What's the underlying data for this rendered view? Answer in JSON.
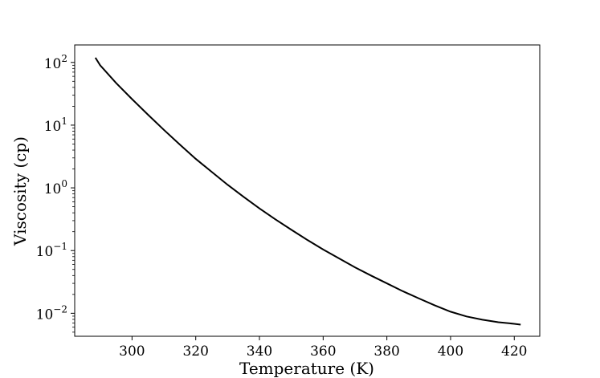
{
  "chart_data": {
    "type": "line",
    "title": "",
    "xlabel": "Temperature (K)",
    "ylabel": "Viscosity (cp)",
    "yscale": "log",
    "xlim": [
      282,
      428
    ],
    "ylim": [
      0.0043,
      190
    ],
    "x_ticks": [
      300,
      320,
      340,
      360,
      380,
      400,
      420
    ],
    "y_ticks": [
      {
        "value": 0.01,
        "base": "10",
        "exp": "−2"
      },
      {
        "value": 0.1,
        "base": "10",
        "exp": "−1"
      },
      {
        "value": 1,
        "base": "10",
        "exp": "0"
      },
      {
        "value": 10,
        "base": "10",
        "exp": "1"
      },
      {
        "value": 100,
        "base": "10",
        "exp": "2"
      }
    ],
    "grid": false,
    "line_color": "#000000",
    "series": [
      {
        "x": [
          288.5,
          290,
          295,
          300,
          305,
          310,
          315,
          320,
          325,
          330,
          335,
          340,
          345,
          350,
          355,
          360,
          365,
          370,
          375,
          380,
          385,
          390,
          395,
          400,
          405,
          410,
          415,
          420,
          422
        ],
        "y": [
          119,
          90,
          47,
          26,
          14.7,
          8.4,
          4.9,
          2.9,
          1.8,
          1.12,
          0.72,
          0.47,
          0.315,
          0.215,
          0.148,
          0.104,
          0.075,
          0.054,
          0.04,
          0.03,
          0.0225,
          0.0173,
          0.0134,
          0.0106,
          0.0089,
          0.0079,
          0.0072,
          0.0068,
          0.0066
        ]
      }
    ]
  }
}
